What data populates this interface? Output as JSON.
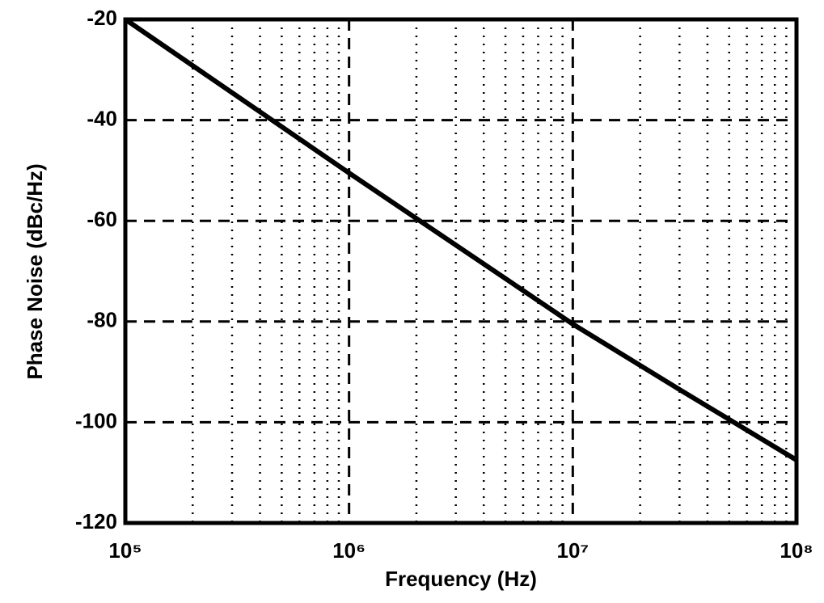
{
  "chart_data": {
    "type": "line",
    "x_label": "Frequency (Hz)",
    "y_label": "Phase Noise (dBc/Hz)",
    "x": [
      100000,
      1000000,
      10000000,
      30000000,
      100000000
    ],
    "series": [
      {
        "color": "#000000",
        "values": [
          -20,
          -50.5,
          -80.5,
          -93.5,
          -107.5
        ]
      }
    ],
    "xlog": true,
    "grid": true,
    "xlim": [
      100000,
      100000000
    ],
    "ylim": [
      -120,
      -20
    ],
    "xticks": [
      {
        "value": 100000,
        "label": "10⁵"
      },
      {
        "value": 1000000,
        "label": "10⁶"
      },
      {
        "value": 10000000,
        "label": "10⁷"
      },
      {
        "value": 100000000,
        "label": "10⁸"
      }
    ],
    "xminorticks": [
      200000,
      300000,
      400000,
      500000,
      600000,
      700000,
      800000,
      900000,
      2000000,
      3000000,
      4000000,
      5000000,
      6000000,
      7000000,
      8000000,
      9000000,
      20000000,
      30000000,
      40000000,
      50000000,
      60000000,
      70000000,
      80000000,
      90000000
    ],
    "yticks": [
      -120,
      -100,
      -80,
      -60,
      -40,
      -20
    ]
  }
}
